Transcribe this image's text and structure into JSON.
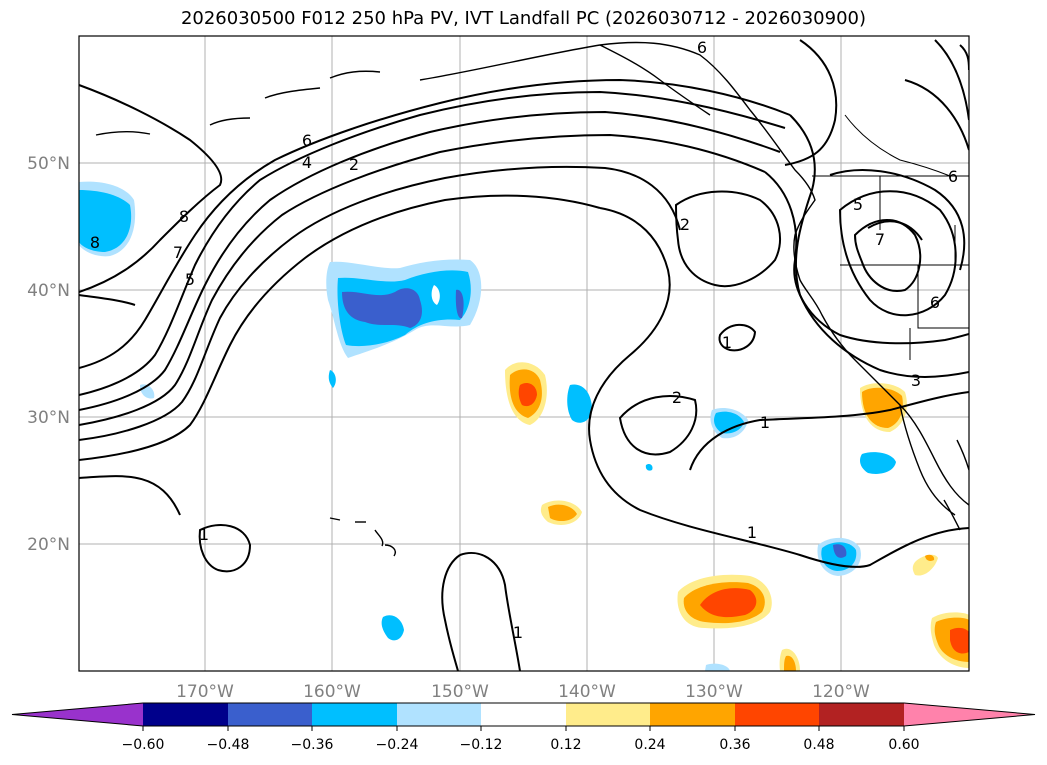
{
  "title": "2026030500 F012 250 hPa PV, IVT Landfall PC (2026030712 - 2026030900)",
  "latitude_labels": [
    "50°N",
    "40°N",
    "30°N",
    "20°N"
  ],
  "longitude_labels": [
    "170°W",
    "160°W",
    "150°W",
    "140°W",
    "130°W",
    "120°W"
  ],
  "contour_labels": [
    "6",
    "6",
    "4",
    "2",
    "8",
    "7",
    "5",
    "8",
    "2",
    "1",
    "2",
    "1",
    "1",
    "1",
    "1",
    "5",
    "7",
    "6",
    "6",
    "3"
  ],
  "colorbar": {
    "ticks": [
      "−0.60",
      "−0.48",
      "−0.36",
      "−0.24",
      "−0.12",
      "0.12",
      "0.24",
      "0.36",
      "0.48",
      "0.60"
    ],
    "colors": [
      "#9932cc",
      "#00008b",
      "#3a5fcd",
      "#00bfff",
      "#b0e2ff",
      "#ffffff",
      "#ffec8b",
      "#ffa500",
      "#ff4500",
      "#b22222",
      "#ff82ab"
    ]
  }
}
